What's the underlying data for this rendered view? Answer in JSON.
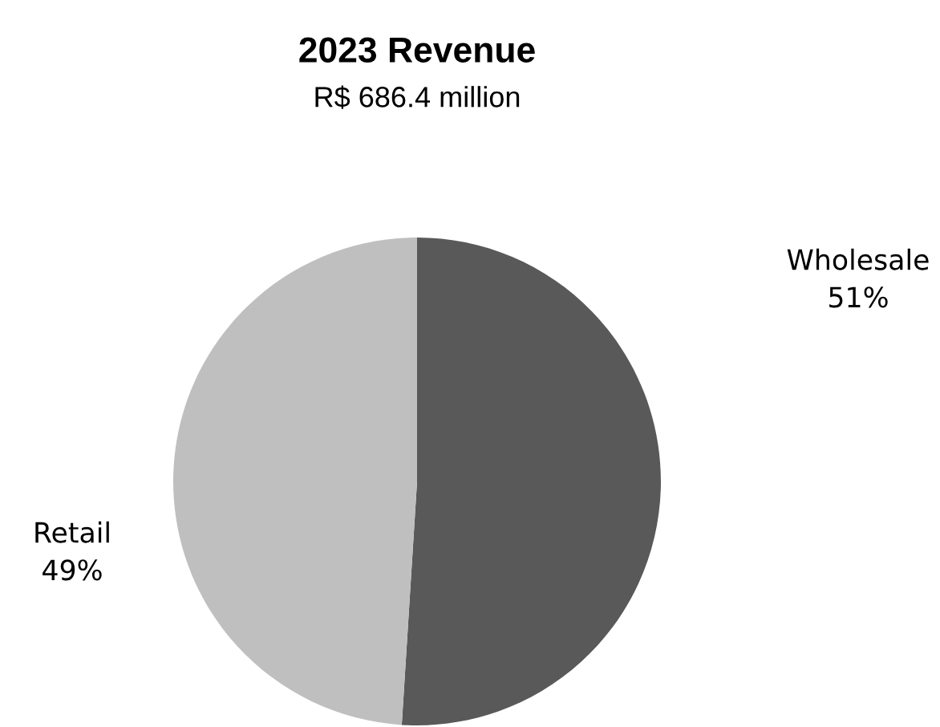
{
  "chart_data": {
    "type": "pie",
    "title": "2023 Revenue",
    "subtitle": "R$ 686.4 million",
    "categories": [
      "Wholesale",
      "Retail"
    ],
    "values": [
      51,
      49
    ],
    "value_labels": [
      "51%",
      "49%"
    ],
    "colors": [
      "#595959",
      "#bfbfbf"
    ],
    "legend": false
  }
}
